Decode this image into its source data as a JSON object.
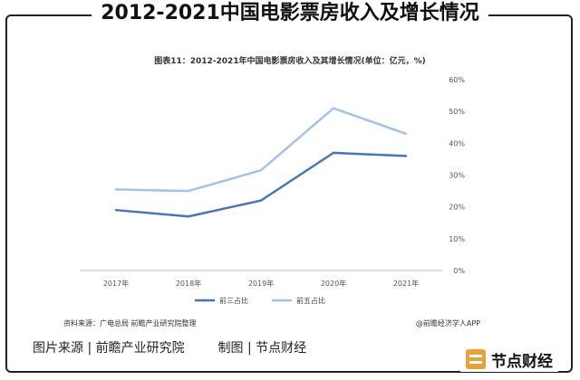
{
  "header": {
    "title": "2012-2021中国电影票房收入及增长情况"
  },
  "chart_data": {
    "type": "line",
    "title": "图表11：2012-2021年中国电影票房收入及其增长情况(单位：亿元，%)",
    "categories": [
      "2017年",
      "2018年",
      "2019年",
      "2020年",
      "2021年"
    ],
    "series": [
      {
        "name": "前三占比",
        "values": [
          19,
          17,
          22,
          37,
          36
        ],
        "color": "#4a74b8"
      },
      {
        "name": "前五占比",
        "values": [
          25.5,
          25,
          31.5,
          51,
          43
        ],
        "color": "#a4c2e8"
      }
    ],
    "y_axis": {
      "ticks": [
        "0%",
        "10%",
        "20%",
        "30%",
        "40%",
        "50%",
        "60%"
      ],
      "position": "right"
    },
    "ylim": [
      0,
      60
    ],
    "legend": "bottom",
    "grid": false
  },
  "source_note": "资料来源：广电总局 前瞻产业研究院整理",
  "attribution": "@前瞻经济学人APP",
  "footer": {
    "image_source": "图片来源 | 前瞻产业研究院",
    "made_by": "制图 | 节点财经"
  },
  "brand": {
    "name": "节点财经"
  }
}
